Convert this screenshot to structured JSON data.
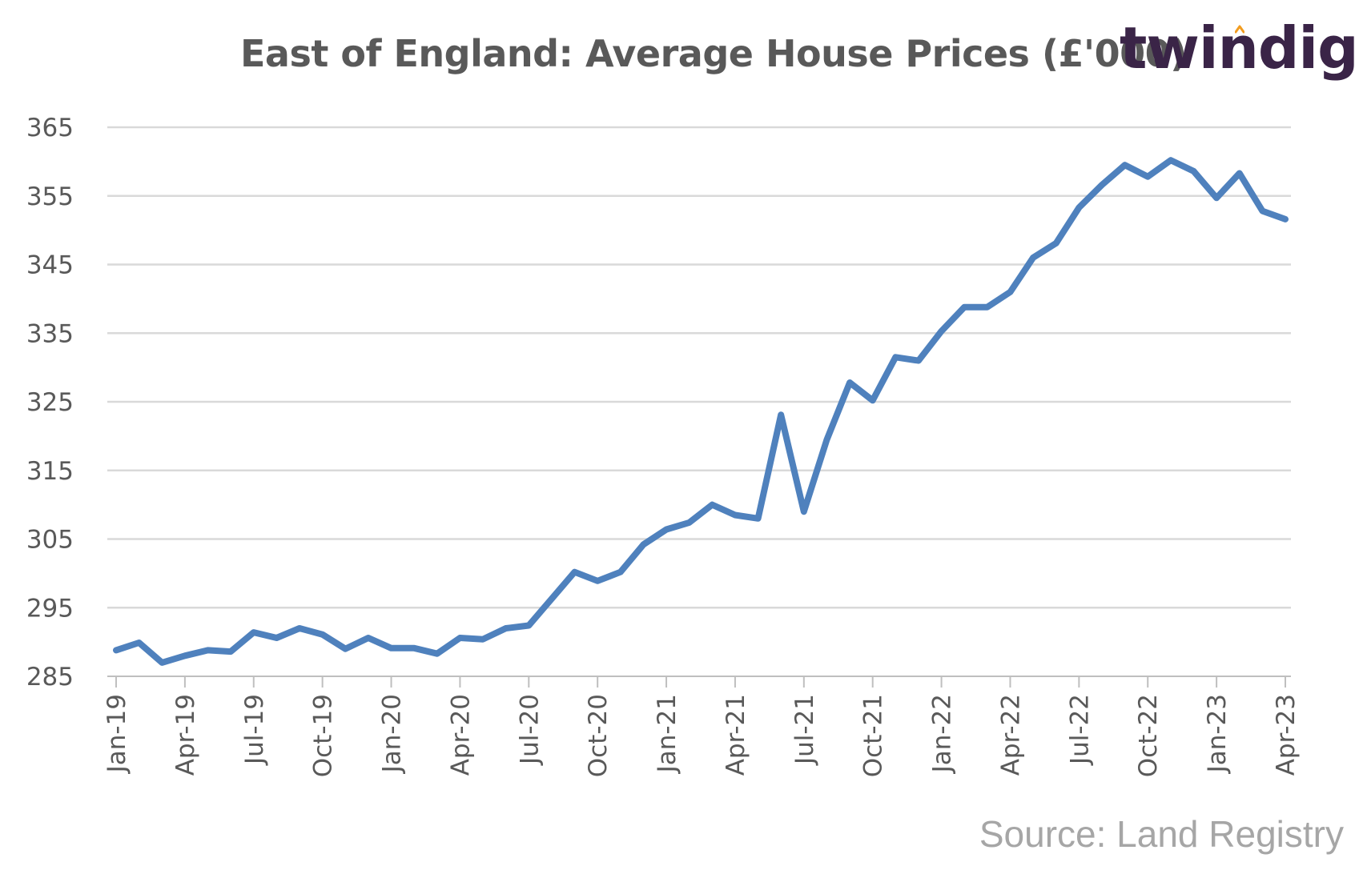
{
  "chart_data": {
    "type": "line",
    "title": "East of England:  Average House Prices (£'000)",
    "xlabel": "",
    "ylabel": "",
    "ylim": [
      285,
      365
    ],
    "yticks": [
      365,
      355,
      345,
      335,
      325,
      315,
      305,
      295,
      285
    ],
    "grid": "horizontal",
    "tick_labels": [
      "Jan-19",
      "Apr-19",
      "Jul-19",
      "Oct-19",
      "Jan-20",
      "Apr-20",
      "Jul-20",
      "Oct-20",
      "Jan-21",
      "Apr-21",
      "Jul-21",
      "Oct-21",
      "Jan-22",
      "Apr-22",
      "Jul-22",
      "Oct-22",
      "Jan-23",
      "Apr-23"
    ],
    "x": [
      "Jan-19",
      "Feb-19",
      "Mar-19",
      "Apr-19",
      "May-19",
      "Jun-19",
      "Jul-19",
      "Aug-19",
      "Sep-19",
      "Oct-19",
      "Nov-19",
      "Dec-19",
      "Jan-20",
      "Feb-20",
      "Mar-20",
      "Apr-20",
      "May-20",
      "Jun-20",
      "Jul-20",
      "Aug-20",
      "Sep-20",
      "Oct-20",
      "Nov-20",
      "Dec-20",
      "Jan-21",
      "Feb-21",
      "Mar-21",
      "Apr-21",
      "May-21",
      "Jun-21",
      "Jul-21",
      "Aug-21",
      "Sep-21",
      "Oct-21",
      "Nov-21",
      "Dec-21",
      "Jan-22",
      "Feb-22",
      "Mar-22",
      "Apr-22",
      "May-22",
      "Jun-22",
      "Jul-22",
      "Aug-22",
      "Sep-22",
      "Oct-22",
      "Nov-22",
      "Dec-22",
      "Jan-23",
      "Feb-23",
      "Mar-23",
      "Apr-23"
    ],
    "series": [
      {
        "color": "#4f81bd",
        "values": [
          288.8,
          289.9,
          287.0,
          288.0,
          288.8,
          288.6,
          291.4,
          290.6,
          292.0,
          291.1,
          289.0,
          290.6,
          289.1,
          289.1,
          288.3,
          290.6,
          290.4,
          292.0,
          292.4,
          296.3,
          300.2,
          298.9,
          300.2,
          304.2,
          306.4,
          307.4,
          310.0,
          308.5,
          308.0,
          323.1,
          309.0,
          319.5,
          327.8,
          325.2,
          331.5,
          331.0,
          335.3,
          338.8,
          338.8,
          341.0,
          346.0,
          348.1,
          353.3,
          356.6,
          359.5,
          357.8,
          360.2,
          358.6,
          354.7,
          358.3,
          352.8,
          351.6
        ]
      }
    ]
  },
  "header": {
    "logo_text": "twindig",
    "logo_accent_color": "#f29c1f",
    "logo_color": "#3a2447"
  },
  "footer": {
    "source": "Source: Land Registry"
  }
}
